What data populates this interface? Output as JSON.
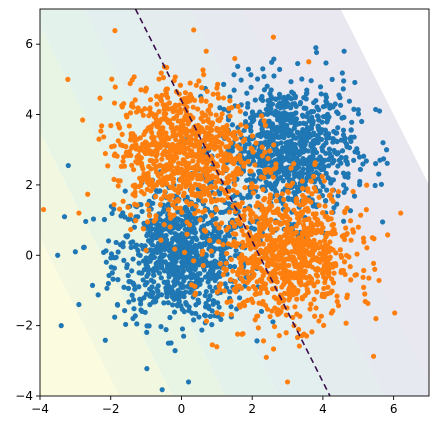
{
  "chart_data": {
    "type": "scatter",
    "title": "",
    "xlabel": "",
    "ylabel": "",
    "xlim": [
      -4,
      7
    ],
    "ylim": [
      -4,
      7
    ],
    "grid": false,
    "x_ticks": [
      -4,
      -2,
      0,
      2,
      4,
      6
    ],
    "x_tick_labels": [
      "−4",
      "−2",
      "0",
      "2",
      "4",
      "6"
    ],
    "y_ticks": [
      -4,
      -2,
      0,
      2,
      4,
      6
    ],
    "y_tick_labels": [
      "−4",
      "−2",
      "0",
      "2",
      "4",
      "6"
    ],
    "series": [
      {
        "color": "#1f77b4",
        "clusters": [
          {
            "center": [
              0,
              0
            ],
            "std": 0.95,
            "count": 900
          },
          {
            "center": [
              3,
              3
            ],
            "std": 0.95,
            "count": 900
          }
        ],
        "points": [
          [
            -3.5,
            0.0
          ],
          [
            -3.2,
            2.55
          ],
          [
            -3.0,
            0.1
          ],
          [
            -2.9,
            -1.4
          ],
          [
            -3.4,
            -2.0
          ],
          [
            0.2,
            -3.6
          ],
          [
            2.3,
            5.3
          ],
          [
            3.8,
            5.9
          ],
          [
            4.6,
            5.8
          ],
          [
            5.6,
            4.1
          ],
          [
            5.7,
            3.2
          ],
          [
            5.8,
            3.0
          ]
        ]
      },
      {
        "color": "#ff7f0e",
        "clusters": [
          {
            "center": [
              0,
              3
            ],
            "std": 0.95,
            "count": 900
          },
          {
            "center": [
              3,
              0
            ],
            "std": 0.95,
            "count": 900
          }
        ],
        "points": [
          [
            -3.9,
            1.3
          ],
          [
            -2.9,
            1.2
          ],
          [
            0.7,
            5.8
          ],
          [
            2.6,
            6.2
          ],
          [
            3.6,
            5.5
          ],
          [
            1.0,
            -2.6
          ],
          [
            2.4,
            -2.9
          ],
          [
            3.0,
            -3.6
          ],
          [
            6.2,
            1.2
          ],
          [
            5.5,
            -1.8
          ],
          [
            5.4,
            0.5
          ]
        ]
      }
    ],
    "decision_boundary": {
      "style": "dashed",
      "color": "#3b0f4f",
      "x": [
        -1.3,
        4.2
      ],
      "y": [
        7.0,
        -4.0
      ]
    },
    "background": {
      "type": "filled-contour",
      "colormap": "viridis",
      "alpha": 0.08
    }
  }
}
